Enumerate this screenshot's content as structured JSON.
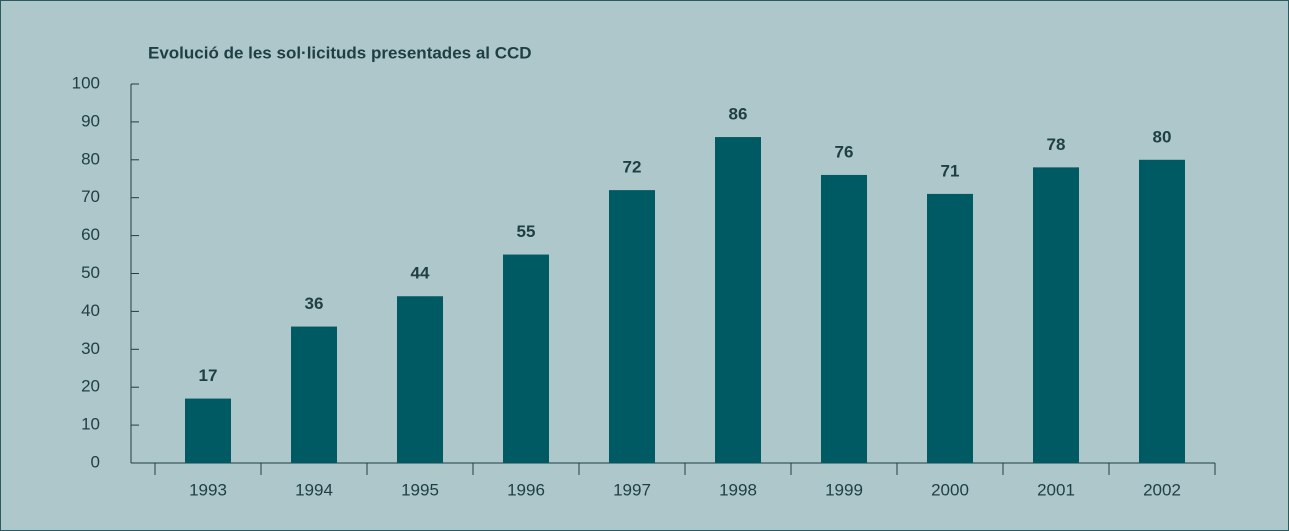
{
  "chart_data": {
    "type": "bar",
    "title": "Evolució de les sol·licituds presentades al CCD",
    "categories": [
      "1993",
      "1994",
      "1995",
      "1996",
      "1997",
      "1998",
      "1999",
      "2000",
      "2001",
      "2002"
    ],
    "values": [
      17,
      36,
      44,
      55,
      72,
      86,
      76,
      71,
      78,
      80
    ],
    "color": "#005a63",
    "ylim": [
      0,
      100
    ],
    "yticks": [
      0,
      10,
      20,
      30,
      40,
      50,
      60,
      70,
      80,
      90,
      100
    ],
    "grid": false
  }
}
